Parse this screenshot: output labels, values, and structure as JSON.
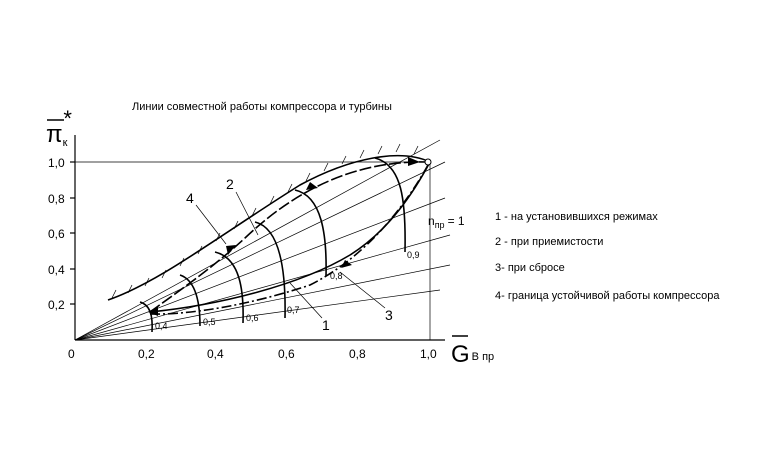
{
  "title": "Линии совместной работы компрессора и турбины",
  "y_axis": {
    "symbol": "π",
    "subscript": "к",
    "superscript": "*",
    "ticks": [
      "0,2",
      "0,4",
      "0,6",
      "0,8",
      "1,0"
    ]
  },
  "x_axis": {
    "symbol": "G",
    "subscript": "В пр",
    "origin": "0",
    "ticks": [
      "0,2",
      "0,4",
      "0,6",
      "0,8",
      "1,0"
    ]
  },
  "speed_labels": [
    "0,4",
    "0,5",
    "0,6",
    "0,7",
    "0,8",
    "0,9"
  ],
  "max_speed": {
    "symbol": "n",
    "subscript": "пр",
    "value": "= 1"
  },
  "curve_labels": [
    "1",
    "2",
    "3",
    "4"
  ],
  "legend": [
    "1 - на установившихся режимах",
    "2 - при приемистости",
    "3- при сбросе",
    "4- граница устойчивой работы компрессора"
  ]
}
